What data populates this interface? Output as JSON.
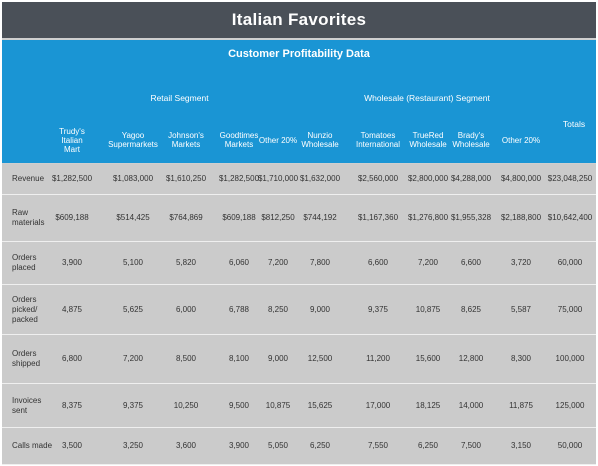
{
  "title": "Italian Favorites",
  "subtitle": "Customer Profitability Data",
  "segments": {
    "retail": "Retail Segment",
    "wholesale": "Wholesale (Restaurant) Segment",
    "totals": "Totals"
  },
  "columns": [
    "Trudy's Italian Mart",
    "Yagoo Supermarkets",
    "Johnson's Markets",
    "Goodtimes Markets",
    "Other 20%",
    "Nunzio Wholesale",
    "Tomatoes International",
    "TrueRed Wholesale",
    "Brady's Wholesale",
    "Other 20%"
  ],
  "rows": [
    {
      "label": "Revenue",
      "values": [
        "$1,282,500",
        "$1,083,000",
        "$1,610,250",
        "$1,282,500",
        "$1,710,000",
        "$1,632,000",
        "$2,560,000",
        "$2,800,000",
        "$4,288,000",
        "$4,800,000",
        "$23,048,250"
      ]
    },
    {
      "label": "Raw materials",
      "values": [
        "$609,188",
        "$514,425",
        "$764,869",
        "$609,188",
        "$812,250",
        "$744,192",
        "$1,167,360",
        "$1,276,800",
        "$1,955,328",
        "$2,188,800",
        "$10,642,400"
      ]
    },
    {
      "label": "Orders placed",
      "values": [
        "3,900",
        "5,100",
        "5,820",
        "6,060",
        "7,200",
        "7,800",
        "6,600",
        "7,200",
        "6,600",
        "3,720",
        "60,000"
      ]
    },
    {
      "label": "Orders picked/ packed",
      "values": [
        "4,875",
        "5,625",
        "6,000",
        "6,788",
        "8,250",
        "9,000",
        "9,375",
        "10,875",
        "8,625",
        "5,587",
        "75,000"
      ]
    },
    {
      "label": "Orders shipped",
      "values": [
        "6,800",
        "7,200",
        "8,500",
        "8,100",
        "9,000",
        "12,500",
        "11,200",
        "15,600",
        "12,800",
        "8,300",
        "100,000"
      ]
    },
    {
      "label": "Invoices sent",
      "values": [
        "8,375",
        "9,375",
        "10,250",
        "9,500",
        "10,875",
        "15,625",
        "17,000",
        "18,125",
        "14,000",
        "11,875",
        "125,000"
      ]
    },
    {
      "label": "Calls made",
      "values": [
        "3,500",
        "3,250",
        "3,600",
        "3,900",
        "5,050",
        "6,250",
        "7,550",
        "6,250",
        "7,500",
        "3,150",
        "50,000"
      ]
    }
  ]
}
